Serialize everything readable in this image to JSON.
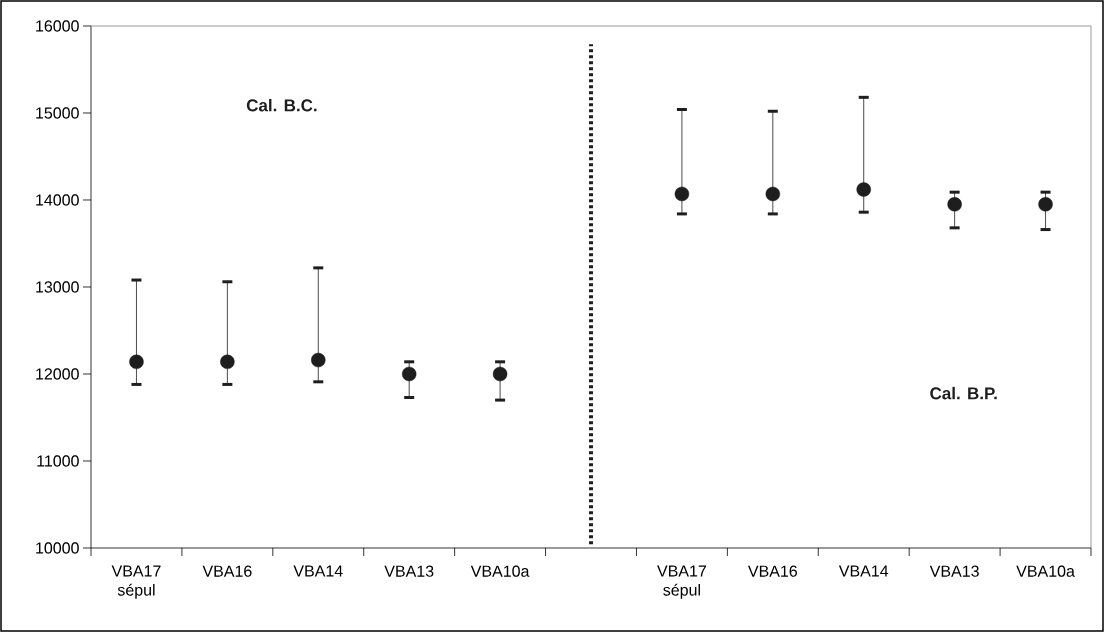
{
  "chart_data": {
    "type": "scatter",
    "categories": [
      "VBA17 sépul",
      "VBA16",
      "VBA14",
      "VBA13",
      "VBA10a",
      null,
      "VBA17 sépul",
      "VBA16",
      "VBA14",
      "VBA13",
      "VBA10a"
    ],
    "values": [
      12140,
      12140,
      12160,
      12000,
      12000,
      null,
      14070,
      14070,
      14120,
      13950,
      13950
    ],
    "errors": [
      [
        11880,
        13080
      ],
      [
        11880,
        13060
      ],
      [
        11910,
        13220
      ],
      [
        11730,
        12140
      ],
      [
        11700,
        12140
      ],
      null,
      [
        13840,
        15040
      ],
      [
        13840,
        15020
      ],
      [
        13860,
        15180
      ],
      [
        13680,
        14090
      ],
      [
        13660,
        14090
      ]
    ],
    "color": "#1e1e1e",
    "marker": "circle",
    "ylim": [
      10000,
      16000
    ],
    "yticks": [
      10000,
      11000,
      12000,
      13000,
      14000,
      15000,
      16000
    ],
    "annotations": [
      "Cal. B.C.",
      "Cal. B.P."
    ]
  }
}
